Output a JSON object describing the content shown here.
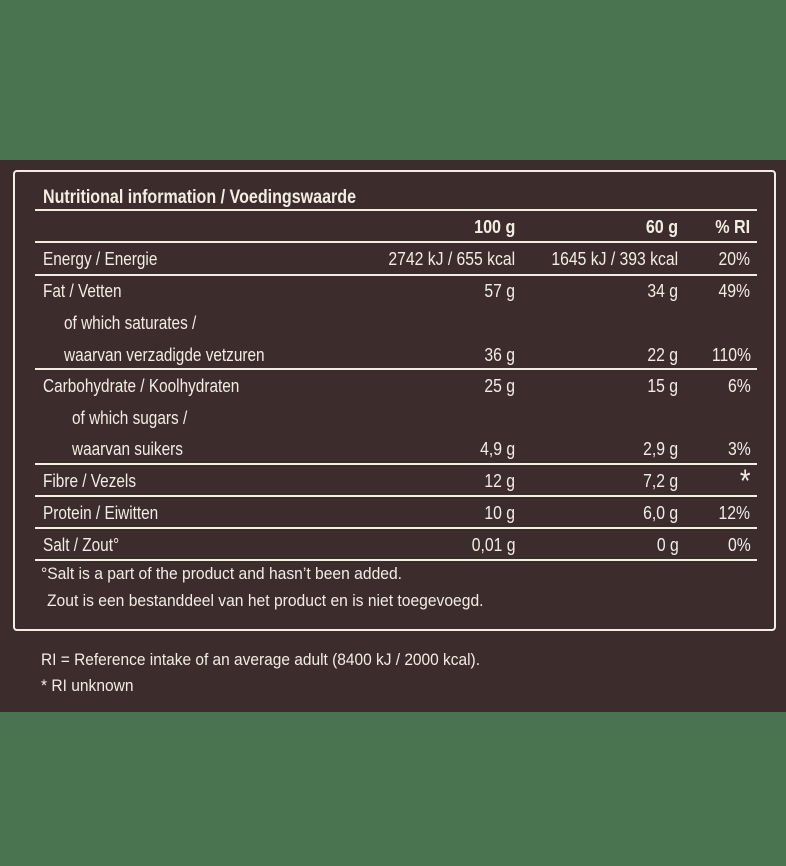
{
  "colors": {
    "green": "#4A7350",
    "brown": "#3D2C2C",
    "cream": "#F2EDE3"
  },
  "table": {
    "title": "Nutritional information / Voedingswaarde",
    "columns": [
      "100 g",
      "60 g",
      "% RI"
    ],
    "rows": [
      {
        "label": "Energy / Energie",
        "values": [
          "2742 kJ / 655 kcal",
          "1645 kJ / 393 kcal",
          "20%"
        ]
      },
      {
        "label": "Fat / Vetten",
        "values": [
          "57 g",
          "34 g",
          "49%"
        ]
      },
      {
        "label": "of which saturates /",
        "values": [
          "",
          "",
          ""
        ]
      },
      {
        "label": "waarvan verzadigde vetzuren",
        "values": [
          "36 g",
          "22 g",
          "110%"
        ]
      },
      {
        "label": "Carbohydrate / Koolhydraten",
        "values": [
          "25 g",
          "15 g",
          "6%"
        ]
      },
      {
        "label": "of which sugars /",
        "values": [
          "",
          "",
          ""
        ]
      },
      {
        "label": "waarvan suikers",
        "values": [
          "4,9 g",
          "2,9 g",
          "3%"
        ]
      },
      {
        "label": "Fibre / Vezels",
        "values": [
          "12 g",
          "7,2 g",
          "*"
        ]
      },
      {
        "label": "Protein / Eiwitten",
        "values": [
          "10 g",
          "6,0 g",
          "12%"
        ]
      },
      {
        "label": "Salt / Zout°",
        "values": [
          "0,01 g",
          "0 g",
          "0%"
        ]
      }
    ],
    "footnotes": [
      "°Salt is a part of the product and hasn’t been added.",
      "Zout is een bestanddeel van het product en is niet toegevoegd."
    ]
  },
  "legend": {
    "reference_intake": "RI = Reference intake of an average adult (8400 kJ / 2000 kcal).",
    "ri_unknown": "* RI unknown"
  }
}
